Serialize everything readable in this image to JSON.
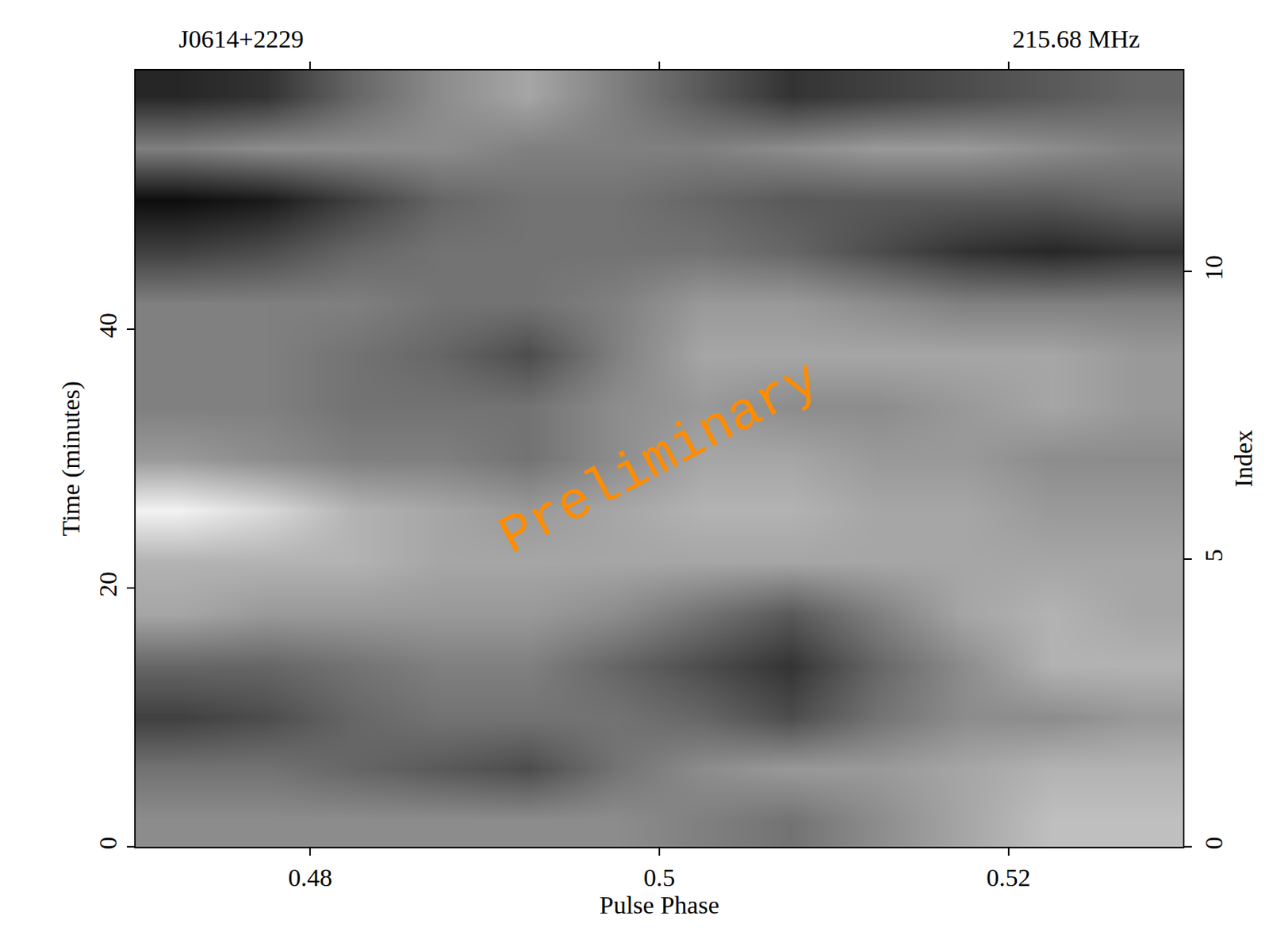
{
  "chart_data": {
    "type": "heatmap",
    "title": "J0614+2229",
    "subtitle": "215.68 MHz",
    "annotation": "Preliminary",
    "x_label": "Pulse Phase",
    "y_label": "Time (minutes)",
    "y2_label": "Index",
    "x": [
      0.4725,
      0.4775,
      0.4825,
      0.4875,
      0.4925,
      0.4975,
      0.5025,
      0.5075,
      0.5125,
      0.5175,
      0.5225,
      0.5275
    ],
    "y": [
      2,
      6,
      10,
      14,
      18,
      22,
      26,
      30,
      34,
      38,
      42,
      46,
      50,
      54,
      58
    ],
    "z": [
      [
        0.45,
        0.45,
        0.45,
        0.45,
        0.45,
        0.45,
        0.5,
        0.55,
        0.45,
        0.35,
        0.25,
        0.25
      ],
      [
        0.55,
        0.55,
        0.6,
        0.65,
        0.7,
        0.55,
        0.45,
        0.4,
        0.4,
        0.35,
        0.3,
        0.3
      ],
      [
        0.75,
        0.7,
        0.6,
        0.55,
        0.55,
        0.55,
        0.6,
        0.7,
        0.55,
        0.45,
        0.45,
        0.4
      ],
      [
        0.6,
        0.6,
        0.55,
        0.5,
        0.5,
        0.6,
        0.7,
        0.8,
        0.6,
        0.45,
        0.3,
        0.3
      ],
      [
        0.35,
        0.4,
        0.4,
        0.4,
        0.4,
        0.45,
        0.55,
        0.65,
        0.5,
        0.35,
        0.3,
        0.35
      ],
      [
        0.3,
        0.3,
        0.3,
        0.35,
        0.35,
        0.35,
        0.35,
        0.35,
        0.35,
        0.35,
        0.35,
        0.35
      ],
      [
        0.05,
        0.15,
        0.3,
        0.35,
        0.4,
        0.35,
        0.3,
        0.3,
        0.35,
        0.35,
        0.4,
        0.4
      ],
      [
        0.4,
        0.45,
        0.5,
        0.5,
        0.55,
        0.45,
        0.35,
        0.35,
        0.4,
        0.4,
        0.45,
        0.45
      ],
      [
        0.5,
        0.5,
        0.55,
        0.55,
        0.55,
        0.45,
        0.4,
        0.45,
        0.45,
        0.4,
        0.35,
        0.4
      ],
      [
        0.5,
        0.5,
        0.55,
        0.6,
        0.7,
        0.5,
        0.35,
        0.35,
        0.35,
        0.35,
        0.35,
        0.4
      ],
      [
        0.5,
        0.5,
        0.5,
        0.55,
        0.55,
        0.5,
        0.4,
        0.4,
        0.45,
        0.5,
        0.5,
        0.5
      ],
      [
        0.75,
        0.7,
        0.6,
        0.55,
        0.55,
        0.55,
        0.55,
        0.6,
        0.7,
        0.8,
        0.85,
        0.8
      ],
      [
        0.95,
        0.9,
        0.75,
        0.6,
        0.55,
        0.55,
        0.6,
        0.65,
        0.65,
        0.65,
        0.65,
        0.6
      ],
      [
        0.5,
        0.45,
        0.45,
        0.45,
        0.5,
        0.5,
        0.5,
        0.45,
        0.4,
        0.4,
        0.45,
        0.5
      ],
      [
        0.85,
        0.8,
        0.6,
        0.45,
        0.35,
        0.5,
        0.65,
        0.8,
        0.75,
        0.7,
        0.65,
        0.6
      ]
    ],
    "zlim": [
      0,
      1
    ],
    "xlim": [
      0.47,
      0.53
    ],
    "xticks": [
      0.48,
      0.5,
      0.52
    ],
    "ylim": [
      0,
      60
    ],
    "yticks": [
      0,
      20,
      40
    ],
    "y2lim": [
      0,
      13.5
    ],
    "y2ticks": [
      0,
      5,
      10
    ],
    "tick_labels": true,
    "grid": false
  }
}
